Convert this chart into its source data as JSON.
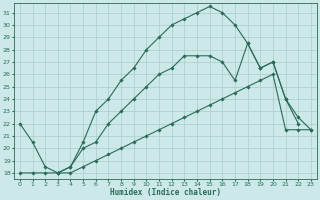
{
  "xlabel": "Humidex (Indice chaleur)",
  "bg_color": "#cce8e8",
  "line_color": "#2a6b5a",
  "grid_color": "#b0d0d0",
  "xlim": [
    -0.5,
    23.5
  ],
  "ylim": [
    17.5,
    31.8
  ],
  "xticks": [
    0,
    1,
    2,
    3,
    4,
    5,
    6,
    7,
    8,
    9,
    10,
    11,
    12,
    13,
    14,
    15,
    16,
    17,
    18,
    19,
    20,
    21,
    22,
    23
  ],
  "yticks": [
    18,
    19,
    20,
    21,
    22,
    23,
    24,
    25,
    26,
    27,
    28,
    29,
    30,
    31
  ],
  "series1_x": [
    0,
    1,
    2,
    3,
    4,
    5,
    6,
    7,
    8,
    9,
    10,
    11,
    12,
    13,
    14,
    15,
    16,
    17,
    18,
    19,
    20,
    21,
    22
  ],
  "series1_y": [
    22,
    20.5,
    18.5,
    18,
    18.5,
    20.5,
    23,
    24,
    25.5,
    26.5,
    28,
    29,
    30,
    30.5,
    31,
    31.5,
    31,
    30,
    28.5,
    26.5,
    27,
    24,
    22
  ],
  "series2_x": [
    3,
    4,
    5,
    6,
    7,
    8,
    9,
    10,
    11,
    12,
    13,
    14,
    15,
    16,
    17,
    18,
    19,
    20,
    21,
    22,
    23
  ],
  "series2_y": [
    18,
    18.5,
    20,
    20.5,
    22,
    23,
    24,
    25,
    26,
    26.5,
    27.5,
    27.5,
    27.5,
    27,
    25.5,
    28.5,
    26.5,
    27,
    24,
    22.5,
    21.5
  ],
  "series3_x": [
    0,
    1,
    2,
    3,
    4,
    5,
    6,
    7,
    8,
    9,
    10,
    11,
    12,
    13,
    14,
    15,
    16,
    17,
    18,
    19,
    20,
    21,
    22,
    23
  ],
  "series3_y": [
    18,
    18,
    18,
    18,
    18,
    18.5,
    19,
    19.5,
    20,
    20.5,
    21,
    21.5,
    22,
    22.5,
    23,
    23.5,
    24,
    24.5,
    25,
    25.5,
    26,
    21.5,
    21.5,
    21.5
  ]
}
